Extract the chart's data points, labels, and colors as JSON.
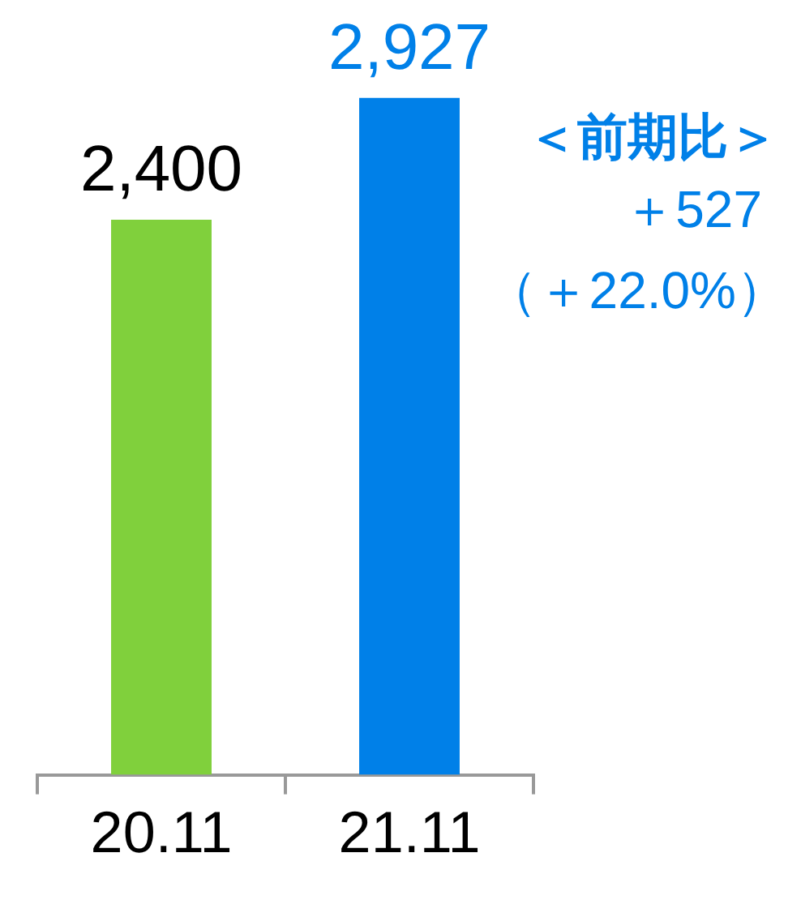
{
  "chart_data": {
    "type": "bar",
    "categories": [
      "20.11",
      "21.11"
    ],
    "values": [
      2400,
      2927
    ],
    "value_labels": [
      "2,400",
      "2,927"
    ],
    "colors": [
      "#80d03c",
      "#0080e8"
    ],
    "annotations": [
      "＜前期比＞",
      "＋527",
      "（＋22.0%）"
    ]
  }
}
